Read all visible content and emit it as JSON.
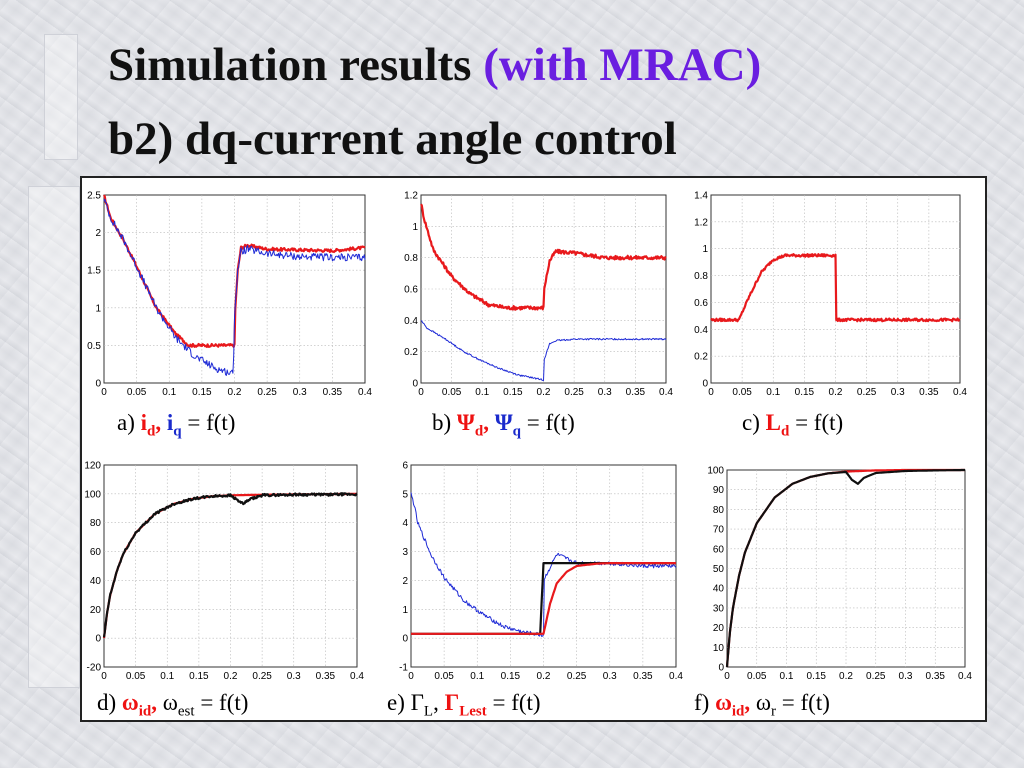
{
  "title": {
    "line1_text": "Simulation results ",
    "line1_highlight": "(with MRAC)",
    "line2": "b2) dq-current angle control"
  },
  "colors": {
    "red": "#e8191c",
    "blue": "#1f2bd6",
    "black": "#101010",
    "highlight": "#6a1ee0"
  },
  "captions": {
    "a": {
      "prefix": "a) ",
      "s1": "i",
      "s1_sub": "d",
      "sep": ", ",
      "s2": "i",
      "s2_sub": "q",
      "suffix": " = f(t)"
    },
    "b": {
      "prefix": "b) ",
      "s1": "Ψ",
      "s1_sub": "d",
      "sep": ", ",
      "s2": "Ψ",
      "s2_sub": "q",
      "suffix": " = f(t)"
    },
    "c": {
      "prefix": "c)  ",
      "s1": "L",
      "s1_sub": "d",
      "suffix": " = f(t)"
    },
    "d": {
      "prefix": "d) ",
      "s1": "ω",
      "s1_sub": "id",
      "sep": ", ",
      "s2": "ω",
      "s2_sub": "est",
      "suffix": " = f(t)"
    },
    "e": {
      "prefix": "e) ",
      "s1": "Γ",
      "s1_sub": "L",
      "sep": ", ",
      "s2": "Γ",
      "s2_sub": "Lest",
      "suffix": " = f(t)"
    },
    "f": {
      "prefix": "f) ",
      "s1": "ω",
      "s1_sub": "id",
      "sep": ", ",
      "s2": "ω",
      "s2_sub": "r",
      "suffix": " = f(t)"
    }
  },
  "chart_data": [
    {
      "id": "a",
      "type": "line",
      "xlim": [
        0,
        0.4
      ],
      "ylim": [
        0,
        2.5
      ],
      "grid": true,
      "xticks": [
        "0",
        "0.05",
        "0.1",
        "0.15",
        "0.2",
        "0.25",
        "0.3",
        "0.35",
        "0.4"
      ],
      "yticks": [
        "0",
        "0.5",
        "1",
        "1.5",
        "2",
        "2.5"
      ],
      "series": [
        {
          "color": "red",
          "noise": 0.02,
          "x": [
            0,
            0.01,
            0.03,
            0.05,
            0.08,
            0.11,
            0.13,
            0.15,
            0.2,
            0.201,
            0.205,
            0.21,
            0.22,
            0.25,
            0.3,
            0.35,
            0.4
          ],
          "y": [
            2.5,
            2.2,
            1.9,
            1.55,
            1.0,
            0.65,
            0.5,
            0.5,
            0.5,
            0.95,
            1.5,
            1.8,
            1.83,
            1.78,
            1.77,
            1.76,
            1.8
          ]
        },
        {
          "color": "blue",
          "noise": 0.05,
          "x": [
            0,
            0.01,
            0.03,
            0.05,
            0.08,
            0.11,
            0.14,
            0.17,
            0.198,
            0.2,
            0.205,
            0.21,
            0.22,
            0.25,
            0.3,
            0.35,
            0.4
          ],
          "y": [
            2.45,
            2.2,
            1.9,
            1.55,
            1.0,
            0.6,
            0.35,
            0.2,
            0.12,
            0.9,
            1.5,
            1.75,
            1.78,
            1.72,
            1.68,
            1.67,
            1.67
          ]
        }
      ]
    },
    {
      "id": "b",
      "type": "line",
      "xlim": [
        0,
        0.4
      ],
      "ylim": [
        0,
        1.2
      ],
      "grid": true,
      "xticks": [
        "0",
        "0.05",
        "0.1",
        "0.15",
        "0.2",
        "0.25",
        "0.3",
        "0.35",
        "0.4"
      ],
      "yticks": [
        "0",
        "0.2",
        "0.4",
        "0.6",
        "0.8",
        "1",
        "1.2"
      ],
      "series": [
        {
          "color": "red",
          "noise": 0.012,
          "x": [
            0,
            0.005,
            0.02,
            0.05,
            0.08,
            0.11,
            0.14,
            0.2,
            0.201,
            0.21,
            0.22,
            0.25,
            0.3,
            0.35,
            0.4
          ],
          "y": [
            1.15,
            1.05,
            0.85,
            0.68,
            0.57,
            0.5,
            0.48,
            0.48,
            0.6,
            0.78,
            0.84,
            0.83,
            0.8,
            0.8,
            0.8
          ]
        },
        {
          "color": "blue",
          "noise": 0.005,
          "x": [
            0,
            0.01,
            0.04,
            0.07,
            0.1,
            0.13,
            0.16,
            0.2,
            0.201,
            0.21,
            0.22,
            0.25,
            0.3,
            0.35,
            0.4
          ],
          "y": [
            0.4,
            0.35,
            0.28,
            0.2,
            0.14,
            0.09,
            0.05,
            0.02,
            0.15,
            0.25,
            0.27,
            0.28,
            0.28,
            0.28,
            0.28
          ]
        }
      ]
    },
    {
      "id": "c",
      "type": "line",
      "xlim": [
        0,
        0.4
      ],
      "ylim": [
        0,
        1.4
      ],
      "grid": true,
      "xticks": [
        "0",
        "0.05",
        "0.1",
        "0.15",
        "0.2",
        "0.25",
        "0.3",
        "0.35",
        "0.4"
      ],
      "yticks": [
        "0",
        "0.2",
        "0.4",
        "0.6",
        "0.8",
        "1",
        "1.2",
        "1.4"
      ],
      "series": [
        {
          "color": "red",
          "noise": 0.01,
          "x": [
            0,
            0.045,
            0.06,
            0.08,
            0.1,
            0.12,
            0.2,
            0.2,
            0.4
          ],
          "y": [
            0.47,
            0.47,
            0.63,
            0.82,
            0.92,
            0.95,
            0.95,
            0.47,
            0.47
          ]
        }
      ]
    },
    {
      "id": "d",
      "type": "line",
      "xlim": [
        0,
        0.4
      ],
      "ylim": [
        -20,
        120
      ],
      "grid": true,
      "xticks": [
        "0",
        "0.05",
        "0.1",
        "0.15",
        "0.2",
        "0.25",
        "0.3",
        "0.35",
        "0.4"
      ],
      "yticks": [
        "-20",
        "0",
        "20",
        "40",
        "60",
        "80",
        "100",
        "120"
      ],
      "series": [
        {
          "color": "red",
          "noise": 0,
          "x": [
            0,
            0.005,
            0.01,
            0.02,
            0.03,
            0.05,
            0.08,
            0.11,
            0.14,
            0.17,
            0.2,
            0.25,
            0.3,
            0.35,
            0.4
          ],
          "y": [
            0,
            18,
            30,
            46,
            58,
            73,
            86,
            93,
            96.5,
            98.3,
            99,
            99.4,
            99.6,
            99.8,
            100
          ]
        },
        {
          "color": "black",
          "noise": 0.8,
          "x": [
            0,
            0.005,
            0.01,
            0.02,
            0.03,
            0.05,
            0.08,
            0.11,
            0.14,
            0.17,
            0.2,
            0.21,
            0.22,
            0.23,
            0.25,
            0.3,
            0.35,
            0.4
          ],
          "y": [
            0,
            18,
            30,
            46,
            58,
            73,
            86,
            93,
            96.5,
            98.3,
            99,
            96,
            93,
            96,
            99,
            99.5,
            99.5,
            99.7
          ]
        }
      ]
    },
    {
      "id": "e",
      "type": "line",
      "xlim": [
        0,
        0.4
      ],
      "ylim": [
        -1,
        6
      ],
      "grid": true,
      "xticks": [
        "0",
        "0.05",
        "0.1",
        "0.15",
        "0.2",
        "0.25",
        "0.3",
        "0.35",
        "0.4"
      ],
      "yticks": [
        "-1",
        "0",
        "1",
        "2",
        "3",
        "4",
        "5",
        "6"
      ],
      "series": [
        {
          "color": "blue",
          "noise": 0.07,
          "x": [
            0,
            0.005,
            0.01,
            0.03,
            0.05,
            0.08,
            0.11,
            0.14,
            0.17,
            0.2,
            0.2,
            0.22,
            0.25,
            0.3,
            0.35,
            0.4
          ],
          "y": [
            5,
            4.6,
            4,
            2.9,
            2.1,
            1.3,
            0.8,
            0.4,
            0.2,
            0.1,
            2,
            2.9,
            2.6,
            2.6,
            2.5,
            2.5
          ]
        },
        {
          "color": "black",
          "noise": 0,
          "x": [
            0,
            0.195,
            0.2,
            0.4
          ],
          "y": [
            0.15,
            0.15,
            2.6,
            2.6
          ]
        },
        {
          "color": "red",
          "noise": 0,
          "x": [
            0,
            0.2,
            0.21,
            0.22,
            0.235,
            0.25,
            0.28,
            0.3,
            0.4
          ],
          "y": [
            0.15,
            0.15,
            1.2,
            1.9,
            2.3,
            2.5,
            2.58,
            2.6,
            2.6
          ]
        }
      ]
    },
    {
      "id": "f",
      "type": "line",
      "xlim": [
        0,
        0.4
      ],
      "ylim": [
        0,
        100
      ],
      "grid": true,
      "xticks": [
        "0",
        "0.05",
        "0.1",
        "0.15",
        "0.2",
        "0.25",
        "0.3",
        "0.35",
        "0.4"
      ],
      "yticks": [
        "0",
        "10",
        "20",
        "30",
        "40",
        "50",
        "60",
        "70",
        "80",
        "90",
        "100"
      ],
      "series": [
        {
          "color": "red",
          "noise": 0,
          "x": [
            0,
            0.005,
            0.01,
            0.02,
            0.03,
            0.05,
            0.08,
            0.11,
            0.14,
            0.17,
            0.2,
            0.25,
            0.3,
            0.35,
            0.4
          ],
          "y": [
            0,
            18,
            30,
            46,
            58,
            73,
            86,
            93,
            96.5,
            98.3,
            99.2,
            99.8,
            100,
            100,
            100
          ]
        },
        {
          "color": "black",
          "noise": 0,
          "x": [
            0,
            0.005,
            0.01,
            0.02,
            0.03,
            0.05,
            0.08,
            0.11,
            0.14,
            0.17,
            0.2,
            0.21,
            0.22,
            0.23,
            0.25,
            0.3,
            0.35,
            0.4
          ],
          "y": [
            0,
            18,
            30,
            46,
            58,
            73,
            86,
            93,
            96.5,
            98.3,
            99,
            95,
            93,
            96,
            98.5,
            99.5,
            99.8,
            100
          ]
        }
      ]
    }
  ]
}
